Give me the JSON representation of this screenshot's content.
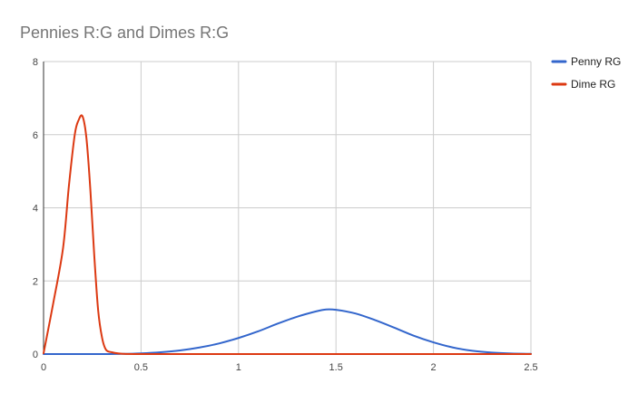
{
  "chart_data": {
    "type": "line",
    "title": "Pennies R:G and Dimes R:G",
    "xlabel": "",
    "ylabel": "",
    "xlim": [
      0,
      2.5
    ],
    "ylim": [
      0,
      8
    ],
    "x_ticks": [
      0,
      0.5,
      1,
      1.5,
      2,
      2.5
    ],
    "y_ticks": [
      0,
      2,
      4,
      6,
      8
    ],
    "x_tick_labels": [
      "0",
      "0.5",
      "1",
      "1.5",
      "2",
      "2.5"
    ],
    "y_tick_labels": [
      "0",
      "2",
      "4",
      "6",
      "8"
    ],
    "grid": true,
    "legend_position": "right",
    "series": [
      {
        "name": "Penny RG",
        "color": "#3366cc",
        "x": [
          0,
          0.3,
          0.4,
          0.5,
          0.6,
          0.7,
          0.8,
          0.9,
          1.0,
          1.1,
          1.2,
          1.3,
          1.4,
          1.45,
          1.5,
          1.6,
          1.7,
          1.8,
          1.9,
          2.0,
          2.1,
          2.2,
          2.3,
          2.4,
          2.5
        ],
        "y": [
          0,
          0.0,
          0.005,
          0.02,
          0.05,
          0.1,
          0.18,
          0.29,
          0.44,
          0.62,
          0.83,
          1.02,
          1.17,
          1.22,
          1.21,
          1.11,
          0.93,
          0.72,
          0.5,
          0.32,
          0.18,
          0.09,
          0.04,
          0.015,
          0.005
        ]
      },
      {
        "name": "Dime RG",
        "color": "#dc3912",
        "x": [
          0,
          0.05,
          0.1,
          0.13,
          0.16,
          0.18,
          0.2,
          0.22,
          0.24,
          0.26,
          0.28,
          0.3,
          0.32,
          0.35,
          0.4,
          0.5,
          1.0,
          1.5,
          2.0,
          2.5
        ],
        "y": [
          0.02,
          1.4,
          2.9,
          4.6,
          6.0,
          6.4,
          6.5,
          5.9,
          4.5,
          2.7,
          1.2,
          0.45,
          0.12,
          0.05,
          0.01,
          0,
          0,
          0,
          0,
          0
        ]
      }
    ]
  }
}
